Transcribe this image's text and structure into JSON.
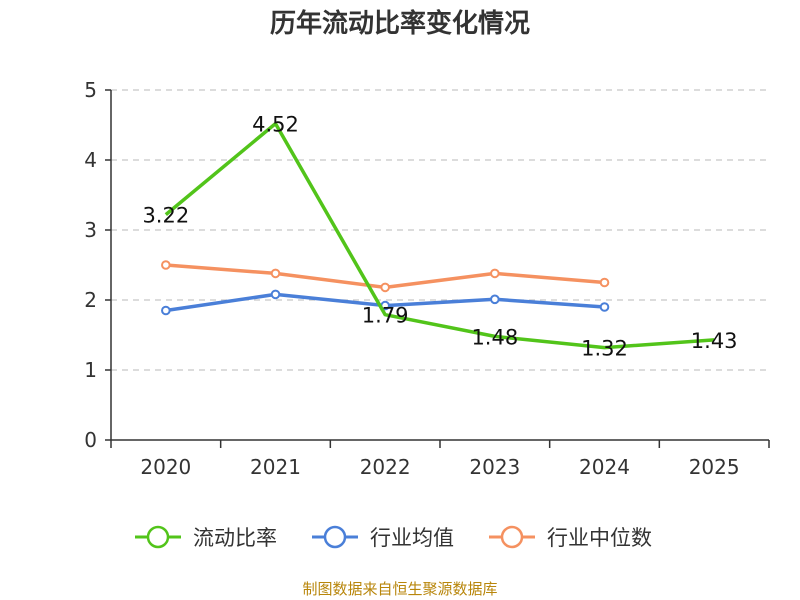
{
  "chart_data": {
    "type": "line",
    "title": "历年流动比率变化情况",
    "categories": [
      "2020",
      "2021",
      "2022",
      "2023",
      "2024",
      "2025"
    ],
    "ylim": [
      0,
      5
    ],
    "yticks": [
      0,
      1,
      2,
      3,
      4,
      5
    ],
    "yticks_labels": [
      "0",
      "1",
      "2",
      "3",
      "4",
      "5"
    ],
    "grid": true,
    "legend_position": "bottom",
    "series": [
      {
        "name": "流动比率",
        "color": "#52c41a",
        "values": [
          3.22,
          4.52,
          1.79,
          1.48,
          1.32,
          1.43
        ],
        "labels": [
          "3.22",
          "4.52",
          "1.79",
          "1.48",
          "1.32",
          "1.43"
        ],
        "show_points": false,
        "show_labels": true
      },
      {
        "name": "行业均值",
        "color": "#4a7fd8",
        "values": [
          1.85,
          2.08,
          1.92,
          2.01,
          1.9,
          null
        ],
        "show_points": true,
        "show_labels": false
      },
      {
        "name": "行业中位数",
        "color": "#f59160",
        "values": [
          2.5,
          2.38,
          2.18,
          2.38,
          2.25,
          null
        ],
        "show_points": true,
        "show_labels": false
      }
    ],
    "source": "制图数据来自恒生聚源数据库",
    "source_color": "#b8860b"
  }
}
